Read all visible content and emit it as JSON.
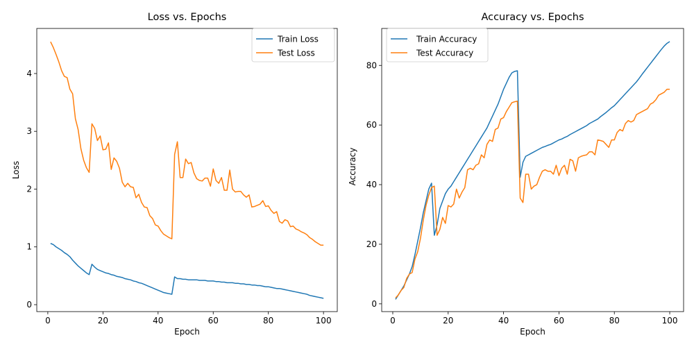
{
  "chart_data": [
    {
      "type": "line",
      "title": "Loss vs. Epochs",
      "xlabel": "Epoch",
      "ylabel": "Loss",
      "xlim": [
        -4,
        105
      ],
      "ylim": [
        -0.12,
        4.78
      ],
      "xticks": [
        0,
        20,
        40,
        60,
        80,
        100
      ],
      "yticks": [
        0,
        1,
        2,
        3,
        4
      ],
      "grid": false,
      "legend_position": "top-right",
      "x": [
        1,
        2,
        3,
        4,
        5,
        6,
        7,
        8,
        9,
        10,
        11,
        12,
        13,
        14,
        15,
        16,
        17,
        18,
        19,
        20,
        21,
        22,
        23,
        24,
        25,
        26,
        27,
        28,
        29,
        30,
        31,
        32,
        33,
        34,
        35,
        36,
        37,
        38,
        39,
        40,
        41,
        42,
        43,
        44,
        45,
        46,
        47,
        48,
        49,
        50,
        51,
        52,
        53,
        54,
        55,
        56,
        57,
        58,
        59,
        60,
        61,
        62,
        63,
        64,
        65,
        66,
        67,
        68,
        69,
        70,
        71,
        72,
        73,
        74,
        75,
        76,
        77,
        78,
        79,
        80,
        81,
        82,
        83,
        84,
        85,
        86,
        87,
        88,
        89,
        90,
        91,
        92,
        93,
        94,
        95,
        96,
        97,
        98,
        99,
        100
      ],
      "series": [
        {
          "name": "Train Loss",
          "color": "#1f77b4",
          "values": [
            1.06,
            1.04,
            1.0,
            0.97,
            0.94,
            0.9,
            0.87,
            0.83,
            0.77,
            0.72,
            0.67,
            0.63,
            0.59,
            0.55,
            0.52,
            0.7,
            0.65,
            0.61,
            0.59,
            0.57,
            0.55,
            0.54,
            0.52,
            0.51,
            0.49,
            0.48,
            0.47,
            0.45,
            0.44,
            0.43,
            0.41,
            0.4,
            0.38,
            0.37,
            0.35,
            0.33,
            0.31,
            0.29,
            0.27,
            0.25,
            0.23,
            0.21,
            0.2,
            0.19,
            0.18,
            0.48,
            0.45,
            0.45,
            0.44,
            0.44,
            0.43,
            0.43,
            0.43,
            0.43,
            0.42,
            0.42,
            0.42,
            0.41,
            0.41,
            0.41,
            0.4,
            0.4,
            0.39,
            0.39,
            0.38,
            0.38,
            0.38,
            0.37,
            0.37,
            0.36,
            0.36,
            0.35,
            0.35,
            0.34,
            0.34,
            0.33,
            0.33,
            0.32,
            0.31,
            0.31,
            0.3,
            0.29,
            0.28,
            0.28,
            0.27,
            0.26,
            0.25,
            0.24,
            0.23,
            0.22,
            0.21,
            0.2,
            0.19,
            0.18,
            0.16,
            0.15,
            0.14,
            0.13,
            0.12,
            0.11
          ]
        },
        {
          "name": "Test Loss",
          "color": "#ff7f0e",
          "values": [
            4.55,
            4.45,
            4.33,
            4.2,
            4.05,
            3.95,
            3.93,
            3.73,
            3.65,
            3.22,
            3.03,
            2.7,
            2.5,
            2.37,
            2.29,
            3.13,
            3.05,
            2.84,
            2.92,
            2.68,
            2.69,
            2.8,
            2.34,
            2.54,
            2.48,
            2.36,
            2.12,
            2.04,
            2.1,
            2.04,
            2.03,
            1.85,
            1.91,
            1.77,
            1.69,
            1.68,
            1.54,
            1.49,
            1.38,
            1.36,
            1.28,
            1.22,
            1.19,
            1.16,
            1.14,
            2.6,
            2.82,
            2.2,
            2.2,
            2.52,
            2.44,
            2.46,
            2.28,
            2.18,
            2.15,
            2.14,
            2.19,
            2.19,
            2.05,
            2.35,
            2.15,
            2.1,
            2.2,
            1.98,
            1.98,
            2.33,
            2.0,
            1.95,
            1.96,
            1.96,
            1.9,
            1.86,
            1.9,
            1.69,
            1.7,
            1.72,
            1.74,
            1.8,
            1.7,
            1.71,
            1.63,
            1.58,
            1.61,
            1.44,
            1.41,
            1.47,
            1.45,
            1.35,
            1.36,
            1.31,
            1.29,
            1.26,
            1.24,
            1.21,
            1.16,
            1.13,
            1.09,
            1.06,
            1.03,
            1.03
          ]
        }
      ]
    },
    {
      "type": "line",
      "title": "Accuracy vs. Epochs",
      "xlabel": "Epoch",
      "ylabel": "Accuracy",
      "xlim": [
        -4,
        105
      ],
      "ylim": [
        -2.6,
        92.4
      ],
      "xticks": [
        0,
        20,
        40,
        60,
        80,
        100
      ],
      "yticks": [
        0,
        20,
        40,
        60,
        80
      ],
      "grid": false,
      "legend_position": "top-left",
      "x": [
        1,
        2,
        3,
        4,
        5,
        6,
        7,
        8,
        9,
        10,
        11,
        12,
        13,
        14,
        15,
        16,
        17,
        18,
        19,
        20,
        21,
        22,
        23,
        24,
        25,
        26,
        27,
        28,
        29,
        30,
        31,
        32,
        33,
        34,
        35,
        36,
        37,
        38,
        39,
        40,
        41,
        42,
        43,
        44,
        45,
        46,
        47,
        48,
        49,
        50,
        51,
        52,
        53,
        54,
        55,
        56,
        57,
        58,
        59,
        60,
        61,
        62,
        63,
        64,
        65,
        66,
        67,
        68,
        69,
        70,
        71,
        72,
        73,
        74,
        75,
        76,
        77,
        78,
        79,
        80,
        81,
        82,
        83,
        84,
        85,
        86,
        87,
        88,
        89,
        90,
        91,
        92,
        93,
        94,
        95,
        96,
        97,
        98,
        99,
        100
      ],
      "series": [
        {
          "name": "Train Accuracy",
          "color": "#1f77b4",
          "values": [
            1.5,
            3.0,
            4.5,
            6.0,
            8.0,
            10.0,
            12.5,
            16.5,
            21.0,
            25.5,
            30.5,
            34.5,
            38.5,
            40.5,
            23.0,
            26.5,
            32.0,
            34.5,
            37.0,
            38.5,
            39.5,
            41.0,
            42.5,
            44.0,
            45.5,
            47.0,
            48.5,
            50.0,
            51.5,
            53.0,
            54.5,
            56.0,
            57.5,
            59.0,
            61.0,
            63.0,
            65.0,
            67.0,
            69.5,
            72.0,
            74.0,
            76.0,
            77.5,
            78.0,
            78.2,
            42.5,
            47.5,
            49.5,
            50.0,
            50.5,
            51.0,
            51.5,
            52.0,
            52.5,
            52.8,
            53.2,
            53.5,
            54.0,
            54.5,
            55.0,
            55.3,
            55.8,
            56.2,
            56.8,
            57.3,
            57.8,
            58.3,
            58.8,
            59.3,
            59.8,
            60.5,
            61.0,
            61.5,
            62.0,
            62.8,
            63.5,
            64.2,
            65.0,
            65.8,
            66.5,
            67.5,
            68.5,
            69.5,
            70.5,
            71.5,
            72.5,
            73.5,
            74.5,
            75.7,
            77.0,
            78.2,
            79.4,
            80.6,
            81.8,
            83.0,
            84.2,
            85.4,
            86.5,
            87.4,
            88.0
          ]
        },
        {
          "name": "Test Accuracy",
          "color": "#ff7f0e",
          "values": [
            2.0,
            3.0,
            4.5,
            5.5,
            8.5,
            10.0,
            10.5,
            15.0,
            17.5,
            22.0,
            28.0,
            33.0,
            36.5,
            39.0,
            39.5,
            23.0,
            25.0,
            29.0,
            27.0,
            33.0,
            32.5,
            33.5,
            38.5,
            35.5,
            37.5,
            39.0,
            45.0,
            45.5,
            45.0,
            46.5,
            47.0,
            50.0,
            49.0,
            53.5,
            55.0,
            54.5,
            58.5,
            59.0,
            62.0,
            62.5,
            64.5,
            66.0,
            67.5,
            67.8,
            68.0,
            35.5,
            34.0,
            43.5,
            43.5,
            38.5,
            39.5,
            40.0,
            42.5,
            44.5,
            45.0,
            44.5,
            44.5,
            43.5,
            46.5,
            43.0,
            45.5,
            46.5,
            43.5,
            48.5,
            48.0,
            44.5,
            49.0,
            49.5,
            49.8,
            50.0,
            51.0,
            51.0,
            50.0,
            55.0,
            54.8,
            54.5,
            53.5,
            52.5,
            55.0,
            55.0,
            57.5,
            58.5,
            58.0,
            60.5,
            61.5,
            61.0,
            61.5,
            63.5,
            64.0,
            64.5,
            65.0,
            65.5,
            67.0,
            67.5,
            68.5,
            70.0,
            70.5,
            71.0,
            72.0,
            72.0
          ]
        }
      ]
    }
  ]
}
